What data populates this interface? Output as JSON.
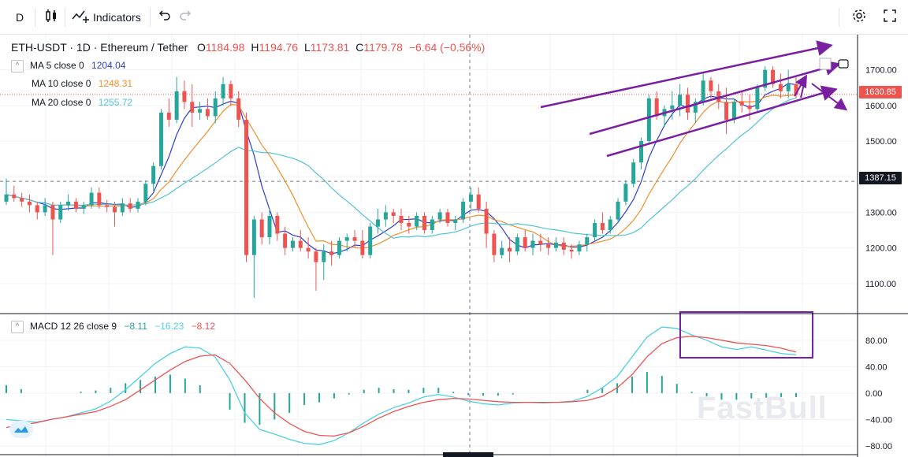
{
  "toolbar": {
    "interval": "D",
    "indicators_label": "Indicators"
  },
  "symbol": {
    "title": "ETH-USDT · 1D · Ethereum / Tether",
    "o_label": "O",
    "o": "1184.98",
    "h_label": "H",
    "h": "1194.76",
    "l_label": "L",
    "l": "1173.81",
    "c_label": "C",
    "c": "1179.78",
    "change": "−6.64 (−0.56%)"
  },
  "ma": [
    {
      "label": "MA 5 close 0",
      "value": "1204.04",
      "color": "#2c3fd0"
    },
    {
      "label": "MA 10 close 0",
      "value": "1248.31",
      "color": "#f0902c"
    },
    {
      "label": "MA 20 close 0",
      "value": "1255.72",
      "color": "#4fc3d8"
    }
  ],
  "macd": {
    "label": "MACD 12 26 close 9",
    "hist": "−8.11",
    "macd": "−16.23",
    "signal": "−8.12",
    "hist_color": "#26a69a",
    "macd_color": "#4dd0e1",
    "signal_color": "#ef5350"
  },
  "badges": {
    "current": "1630.85",
    "crosshair": "1387.15"
  },
  "watermark": "FastBull",
  "colors": {
    "up": "#26a69a",
    "down": "#ef5350",
    "annotation": "#7b1fa2",
    "grid": "#f0f3fa"
  },
  "chart_data": [
    {
      "type": "candlestick",
      "title": "ETH-USDT · 1D · Ethereum / Tether",
      "ylim": [
        1020,
        1790
      ],
      "yticks": [
        "1700.00",
        "1600.00",
        "1500.00",
        "1400.00",
        "1300.00",
        "1200.00",
        "1100.00"
      ],
      "ytick_values": [
        1700,
        1600,
        1500,
        1400,
        1300,
        1200,
        1100
      ],
      "candles": [
        [
          1330,
          1395,
          1320,
          1350
        ],
        [
          1350,
          1375,
          1330,
          1340
        ],
        [
          1340,
          1355,
          1315,
          1330
        ],
        [
          1330,
          1350,
          1300,
          1320
        ],
        [
          1320,
          1330,
          1280,
          1300
        ],
        [
          1300,
          1340,
          1290,
          1320
        ],
        [
          1320,
          1330,
          1180,
          1280
        ],
        [
          1280,
          1330,
          1270,
          1320
        ],
        [
          1320,
          1350,
          1305,
          1330
        ],
        [
          1330,
          1340,
          1300,
          1310
        ],
        [
          1310,
          1330,
          1295,
          1320
        ],
        [
          1320,
          1370,
          1310,
          1355
        ],
        [
          1355,
          1370,
          1310,
          1320
        ],
        [
          1320,
          1335,
          1300,
          1315
        ],
        [
          1315,
          1330,
          1260,
          1300
        ],
        [
          1300,
          1340,
          1290,
          1325
        ],
        [
          1325,
          1340,
          1300,
          1310
        ],
        [
          1310,
          1340,
          1300,
          1330
        ],
        [
          1330,
          1390,
          1320,
          1380
        ],
        [
          1380,
          1440,
          1360,
          1430
        ],
        [
          1430,
          1590,
          1420,
          1580
        ],
        [
          1580,
          1620,
          1540,
          1560
        ],
        [
          1560,
          1680,
          1550,
          1640
        ],
        [
          1640,
          1670,
          1590,
          1610
        ],
        [
          1610,
          1660,
          1540,
          1580
        ],
        [
          1580,
          1610,
          1560,
          1590
        ],
        [
          1590,
          1620,
          1560,
          1570
        ],
        [
          1570,
          1640,
          1550,
          1620
        ],
        [
          1620,
          1680,
          1600,
          1660
        ],
        [
          1660,
          1670,
          1600,
          1620
        ],
        [
          1620,
          1640,
          1540,
          1560
        ],
        [
          1560,
          1580,
          1160,
          1180
        ],
        [
          1180,
          1290,
          1060,
          1280
        ],
        [
          1280,
          1300,
          1210,
          1230
        ],
        [
          1230,
          1310,
          1210,
          1290
        ],
        [
          1290,
          1300,
          1220,
          1240
        ],
        [
          1240,
          1260,
          1180,
          1200
        ],
        [
          1200,
          1230,
          1190,
          1220
        ],
        [
          1220,
          1250,
          1190,
          1200
        ],
        [
          1200,
          1230,
          1170,
          1190
        ],
        [
          1190,
          1200,
          1080,
          1160
        ],
        [
          1160,
          1210,
          1110,
          1190
        ],
        [
          1190,
          1220,
          1150,
          1180
        ],
        [
          1180,
          1230,
          1170,
          1220
        ],
        [
          1220,
          1240,
          1190,
          1230
        ],
        [
          1230,
          1250,
          1200,
          1220
        ],
        [
          1220,
          1250,
          1170,
          1180
        ],
        [
          1180,
          1270,
          1170,
          1260
        ],
        [
          1260,
          1310,
          1240,
          1280
        ],
        [
          1280,
          1320,
          1260,
          1300
        ],
        [
          1300,
          1310,
          1270,
          1290
        ],
        [
          1290,
          1310,
          1250,
          1270
        ],
        [
          1270,
          1290,
          1240,
          1260
        ],
        [
          1260,
          1300,
          1250,
          1290
        ],
        [
          1290,
          1300,
          1240,
          1250
        ],
        [
          1250,
          1290,
          1240,
          1280
        ],
        [
          1280,
          1310,
          1270,
          1300
        ],
        [
          1300,
          1310,
          1260,
          1270
        ],
        [
          1270,
          1290,
          1250,
          1280
        ],
        [
          1280,
          1340,
          1270,
          1330
        ],
        [
          1330,
          1370,
          1310,
          1350
        ],
        [
          1350,
          1370,
          1300,
          1310
        ],
        [
          1310,
          1330,
          1200,
          1240
        ],
        [
          1240,
          1250,
          1160,
          1180
        ],
        [
          1180,
          1220,
          1170,
          1200
        ],
        [
          1200,
          1230,
          1160,
          1190
        ],
        [
          1190,
          1240,
          1180,
          1230
        ],
        [
          1230,
          1250,
          1190,
          1200
        ],
        [
          1200,
          1240,
          1180,
          1220
        ],
        [
          1220,
          1240,
          1190,
          1210
        ],
        [
          1210,
          1230,
          1180,
          1200
        ],
        [
          1200,
          1230,
          1190,
          1215
        ],
        [
          1215,
          1230,
          1180,
          1195
        ],
        [
          1195,
          1210,
          1170,
          1190
        ],
        [
          1190,
          1220,
          1180,
          1210
        ],
        [
          1210,
          1240,
          1190,
          1230
        ],
        [
          1230,
          1280,
          1220,
          1270
        ],
        [
          1270,
          1300,
          1240,
          1250
        ],
        [
          1250,
          1290,
          1240,
          1280
        ],
        [
          1280,
          1340,
          1270,
          1330
        ],
        [
          1330,
          1390,
          1320,
          1380
        ],
        [
          1380,
          1450,
          1370,
          1440
        ],
        [
          1440,
          1510,
          1420,
          1500
        ],
        [
          1500,
          1630,
          1490,
          1620
        ],
        [
          1620,
          1640,
          1560,
          1570
        ],
        [
          1570,
          1600,
          1540,
          1590
        ],
        [
          1590,
          1640,
          1560,
          1600
        ],
        [
          1600,
          1660,
          1570,
          1630
        ],
        [
          1630,
          1650,
          1560,
          1580
        ],
        [
          1580,
          1620,
          1550,
          1610
        ],
        [
          1610,
          1690,
          1600,
          1670
        ],
        [
          1670,
          1680,
          1620,
          1640
        ],
        [
          1640,
          1660,
          1590,
          1610
        ],
        [
          1610,
          1650,
          1520,
          1560
        ],
        [
          1560,
          1620,
          1550,
          1610
        ],
        [
          1610,
          1640,
          1580,
          1600
        ],
        [
          1600,
          1630,
          1560,
          1590
        ],
        [
          1590,
          1660,
          1580,
          1650
        ],
        [
          1650,
          1710,
          1640,
          1700
        ],
        [
          1700,
          1710,
          1650,
          1660
        ],
        [
          1660,
          1690,
          1620,
          1640
        ],
        [
          1640,
          1700,
          1620,
          1660
        ],
        [
          1660,
          1680,
          1620,
          1630
        ]
      ]
    },
    {
      "type": "line",
      "title": "MACD 12 26 close 9",
      "ylim": [
        -92,
        118
      ],
      "yticks": [
        "80.00",
        "40.00",
        "0.00",
        "−40.00",
        "−80.00"
      ],
      "ytick_values": [
        80,
        40,
        0,
        -40,
        -80
      ],
      "series": [
        {
          "name": "MACD",
          "values": [
            -40,
            -42,
            -44,
            -40,
            -36,
            -30,
            -24,
            -12,
            5,
            25,
            45,
            60,
            70,
            68,
            55,
            20,
            -30,
            -55,
            -62,
            -70,
            -76,
            -78,
            -72,
            -60,
            -45,
            -32,
            -22,
            -15,
            -6,
            -2,
            -6,
            -12,
            -16,
            -18,
            -15,
            -14,
            -15,
            -14,
            -12,
            -5,
            8,
            25,
            55,
            85,
            100,
            98,
            88,
            80,
            70,
            66,
            70,
            65,
            60,
            58
          ]
        },
        {
          "name": "Signal",
          "values": [
            -52,
            -48,
            -45,
            -40,
            -36,
            -32,
            -28,
            -20,
            -10,
            5,
            20,
            35,
            48,
            56,
            58,
            45,
            20,
            -8,
            -30,
            -46,
            -58,
            -64,
            -65,
            -60,
            -50,
            -38,
            -28,
            -20,
            -14,
            -10,
            -8,
            -9,
            -11,
            -13,
            -14,
            -14,
            -14,
            -14,
            -13,
            -11,
            -5,
            8,
            28,
            55,
            75,
            84,
            86,
            84,
            80,
            76,
            74,
            72,
            68,
            62
          ]
        }
      ],
      "histogram": [
        12,
        6,
        0,
        0,
        0,
        2,
        4,
        8,
        15,
        20,
        25,
        28,
        22,
        12,
        0,
        -25,
        -45,
        -48,
        -40,
        -30,
        -18,
        -14,
        -8,
        -2,
        5,
        8,
        6,
        5,
        8,
        8,
        2,
        -3,
        -4,
        -4,
        -2,
        0,
        0,
        0,
        0,
        5,
        8,
        15,
        25,
        32,
        26,
        14,
        2,
        -5,
        -10,
        -10,
        -8,
        -7,
        -6,
        -6
      ]
    }
  ]
}
